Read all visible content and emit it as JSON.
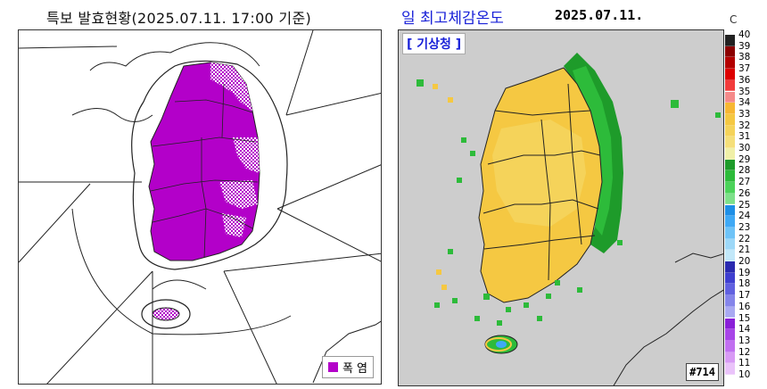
{
  "left_title": "특보 발효현황(2025.07.11. 17:00 기준)",
  "right_title": "일 최고체감온도",
  "right_date": "2025.07.11.",
  "agency_label": "[ 기상청 ]",
  "legend": {
    "label": "폭 염",
    "color": "#b300c9"
  },
  "sheet_number": "#714",
  "scale": {
    "unit": "C",
    "labels": [
      "40",
      "39",
      "38",
      "37",
      "36",
      "35",
      "34",
      "33",
      "32",
      "31",
      "30",
      "29",
      "28",
      "27",
      "26",
      "25",
      "24",
      "23",
      "22",
      "21",
      "20",
      "19",
      "18",
      "17",
      "16",
      "15",
      "14",
      "13",
      "12",
      "11",
      "10"
    ],
    "colors": [
      "#222222",
      "#8b0000",
      "#b30000",
      "#dd0000",
      "#f23c3c",
      "#f58a8a",
      "#f7b733",
      "#f5c842",
      "#f5d35a",
      "#f5df7a",
      "#f0f0a8",
      "#1e9b2a",
      "#2dbb3a",
      "#4cd35a",
      "#7ee08a",
      "#1e8fe6",
      "#3fa9f5",
      "#6ec3f7",
      "#9dd8f8",
      "#c2e8f9",
      "#2a2ab0",
      "#3f3fd0",
      "#6161e0",
      "#8585ea",
      "#a9a9f2",
      "#8a1fd8",
      "#a845e8",
      "#c170f0",
      "#d89af5",
      "#eac3fa"
    ]
  }
}
